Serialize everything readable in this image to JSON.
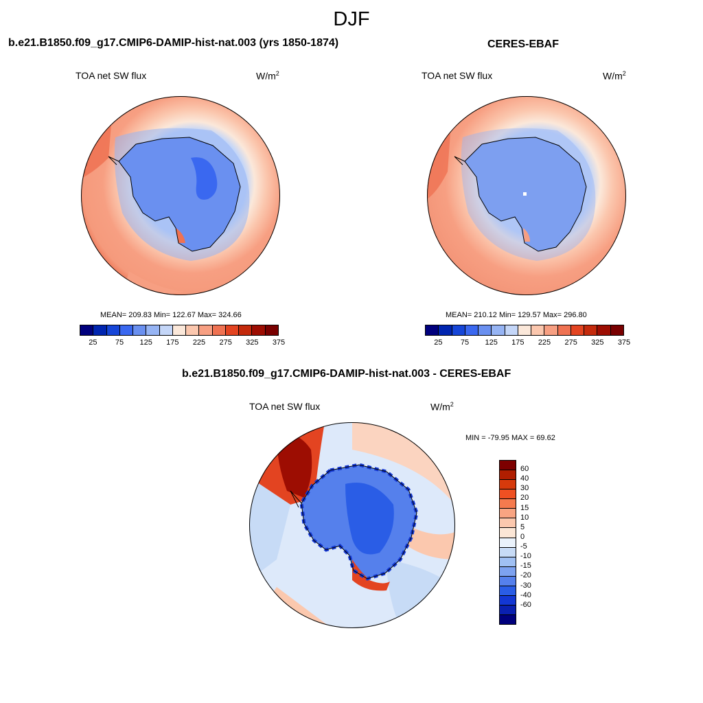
{
  "season": "DJF",
  "panels": {
    "model": {
      "title": "b.e21.B1850.f09_g17.CMIP6-DAMIP-hist-nat.003 (yrs 1850-1874)",
      "variable": "TOA net SW flux",
      "units_base": "W/m",
      "units_exp": "2",
      "stats": "MEAN= 209.83  Min= 122.67  Max= 324.66"
    },
    "obs": {
      "title": "CERES-EBAF",
      "variable": "TOA net SW flux",
      "units_base": "W/m",
      "units_exp": "2",
      "stats": "MEAN= 210.12  Min= 129.57  Max= 296.80"
    },
    "diff": {
      "title": "b.e21.B1850.f09_g17.CMIP6-DAMIP-hist-nat.003 - CERES-EBAF",
      "variable": "TOA net SW flux",
      "units_base": "W/m",
      "units_exp": "2",
      "stats": "MIN = -79.95 MAX =  69.62"
    }
  },
  "colorbars": {
    "abs_colors": [
      "#00007d",
      "#0025b0",
      "#1646d8",
      "#3a68f0",
      "#6a90f0",
      "#96b4f4",
      "#c4d6f8",
      "#fbe8da",
      "#fbc7ae",
      "#f79f82",
      "#ef7252",
      "#e34421",
      "#c42a0c",
      "#9d0d02",
      "#790000"
    ],
    "abs_labels": [
      "25",
      "75",
      "125",
      "175",
      "225",
      "275",
      "325",
      "375"
    ],
    "diff_colors": [
      "#7d0000",
      "#b01e00",
      "#d63a0c",
      "#ef5022",
      "#f57a4e",
      "#f8a482",
      "#fbc8ae",
      "#fbe6d6",
      "#eaf2fb",
      "#c7dbf6",
      "#a0c0f3",
      "#7da2f0",
      "#5580ec",
      "#2a5de6",
      "#1337d4",
      "#0a20b0",
      "#00007d"
    ],
    "diff_labels": [
      "60",
      "40",
      "30",
      "20",
      "15",
      "10",
      "5",
      "0",
      "-5",
      "-10",
      "-15",
      "-20",
      "-30",
      "-40",
      "-60"
    ]
  },
  "chart_data": [
    {
      "type": "heatmap",
      "projection": "south-polar-stereographic",
      "title": "b.e21.B1850.f09_g17.CMIP6-DAMIP-hist-nat.003 (yrs 1850-1874)",
      "variable": "TOA net SW flux",
      "units": "W/m2",
      "mean": 209.83,
      "min": 122.67,
      "max": 324.66,
      "contour_levels": [
        25,
        50,
        75,
        100,
        125,
        150,
        175,
        200,
        225,
        250,
        275,
        300,
        325,
        350
      ]
    },
    {
      "type": "heatmap",
      "projection": "south-polar-stereographic",
      "title": "CERES-EBAF",
      "variable": "TOA net SW flux",
      "units": "W/m2",
      "mean": 210.12,
      "min": 129.57,
      "max": 296.8,
      "contour_levels": [
        25,
        50,
        75,
        100,
        125,
        150,
        175,
        200,
        225,
        250,
        275,
        300,
        325,
        350
      ]
    },
    {
      "type": "heatmap",
      "projection": "south-polar-stereographic",
      "title": "b.e21.B1850.f09_g17.CMIP6-DAMIP-hist-nat.003 - CERES-EBAF",
      "variable": "TOA net SW flux",
      "units": "W/m2",
      "min": -79.95,
      "max": 69.62,
      "contour_levels": [
        -60,
        -40,
        -30,
        -20,
        -15,
        -10,
        -5,
        0,
        5,
        10,
        15,
        20,
        30,
        40,
        60
      ]
    }
  ]
}
